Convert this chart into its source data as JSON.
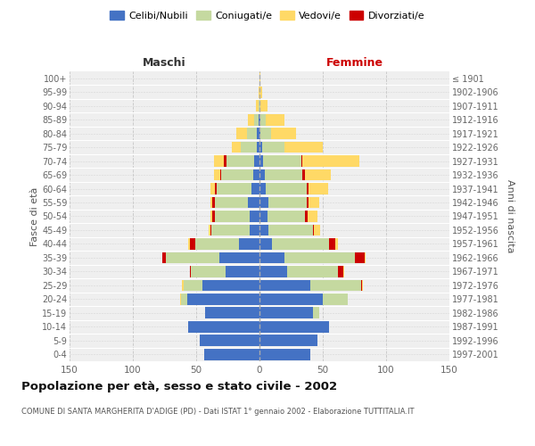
{
  "age_groups": [
    "100+",
    "95-99",
    "90-94",
    "85-89",
    "80-84",
    "75-79",
    "70-74",
    "65-69",
    "60-64",
    "55-59",
    "50-54",
    "45-49",
    "40-44",
    "35-39",
    "30-34",
    "25-29",
    "20-24",
    "15-19",
    "10-14",
    "5-9",
    "0-4"
  ],
  "birth_years": [
    "≤ 1901",
    "1902-1906",
    "1907-1911",
    "1912-1916",
    "1917-1921",
    "1922-1926",
    "1927-1931",
    "1932-1936",
    "1937-1941",
    "1942-1946",
    "1947-1951",
    "1952-1956",
    "1957-1961",
    "1962-1966",
    "1967-1971",
    "1972-1976",
    "1977-1981",
    "1982-1986",
    "1987-1991",
    "1992-1996",
    "1997-2001"
  ],
  "colors": {
    "celibi": "#4472C4",
    "coniugati": "#C5D9A0",
    "vedovi": "#FFD966",
    "divorziati": "#CC0000"
  },
  "maschi": {
    "celibi": [
      0,
      0,
      0,
      1,
      2,
      2,
      4,
      5,
      6,
      9,
      8,
      8,
      16,
      32,
      27,
      45,
      57,
      43,
      56,
      47,
      44
    ],
    "coniugati": [
      0,
      0,
      1,
      3,
      8,
      13,
      22,
      25,
      28,
      26,
      27,
      30,
      35,
      42,
      27,
      15,
      5,
      0,
      0,
      0,
      0
    ],
    "vedovi": [
      0,
      1,
      2,
      5,
      8,
      7,
      8,
      5,
      4,
      2,
      2,
      1,
      1,
      0,
      0,
      1,
      1,
      0,
      0,
      0,
      0
    ],
    "divorziati": [
      0,
      0,
      0,
      0,
      0,
      0,
      2,
      1,
      1,
      2,
      2,
      1,
      4,
      3,
      1,
      0,
      0,
      0,
      0,
      0,
      0
    ]
  },
  "femmine": {
    "celibi": [
      0,
      0,
      0,
      1,
      1,
      2,
      3,
      4,
      5,
      7,
      6,
      7,
      10,
      20,
      22,
      40,
      50,
      42,
      55,
      46,
      40
    ],
    "coniugati": [
      0,
      0,
      1,
      4,
      8,
      18,
      30,
      30,
      32,
      30,
      30,
      35,
      45,
      55,
      40,
      40,
      20,
      5,
      0,
      0,
      0
    ],
    "vedovi": [
      1,
      2,
      5,
      15,
      20,
      30,
      45,
      20,
      15,
      8,
      8,
      5,
      2,
      1,
      1,
      1,
      0,
      0,
      0,
      0,
      0
    ],
    "divorziati": [
      0,
      0,
      0,
      0,
      0,
      0,
      1,
      2,
      2,
      2,
      2,
      1,
      5,
      8,
      4,
      1,
      0,
      0,
      0,
      0,
      0
    ]
  },
  "xlim": 150,
  "title": "Popolazione per età, sesso e stato civile - 2002",
  "subtitle": "COMUNE DI SANTA MARGHERITA D'ADIGE (PD) - Dati ISTAT 1° gennaio 2002 - Elaborazione TUTTITALIA.IT",
  "ylabel_left": "Fasce di età",
  "ylabel_right": "Anni di nascita",
  "legend_labels": [
    "Celibi/Nubili",
    "Coniugati/e",
    "Vedovi/e",
    "Divorziati/e"
  ],
  "maschi_label": "Maschi",
  "femmine_label": "Femmine",
  "bg_color": "#efefef",
  "bar_height": 0.82
}
